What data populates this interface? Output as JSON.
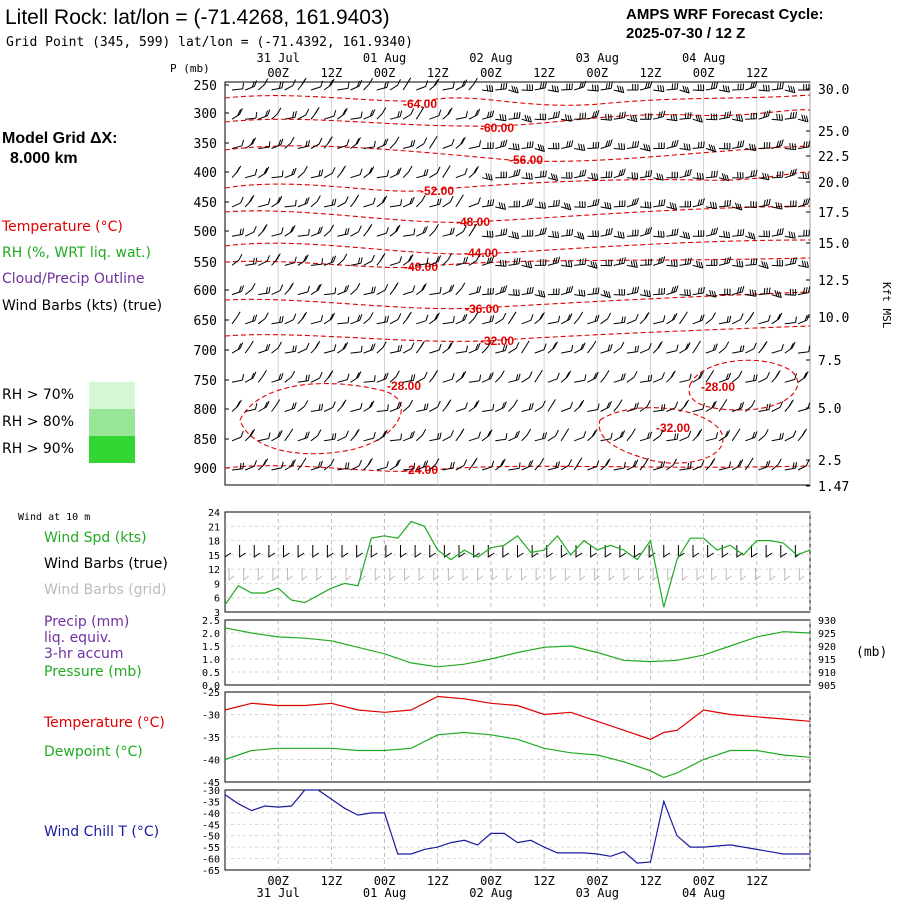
{
  "header": {
    "title": "Litell Rock:  lat/lon = (-71.4268, 161.9403)",
    "subtitle": "Grid Point (345, 599) lat/lon = (-71.4392, 161.9340)",
    "cycle_line1": "AMPS WRF Forecast Cycle:",
    "cycle_line2": "2025-07-30 / 12  Z"
  },
  "sidebar": {
    "grid_label": "Model Grid ΔX:",
    "grid_value": "8.000 km",
    "legend": [
      {
        "text": "Temperature (°C)",
        "color": "#e00000"
      },
      {
        "text": "RH (%, WRT liq. wat.)",
        "color": "#22aa22"
      },
      {
        "text": "Cloud/Precip Outline",
        "color": "#7030a0"
      },
      {
        "text": "Wind Barbs (kts) (true)",
        "color": "#000000"
      }
    ],
    "rh_bins": [
      {
        "text": "RH > 70%",
        "color": "#d6f7d6"
      },
      {
        "text": "RH > 80%",
        "color": "#99e699"
      },
      {
        "text": "RH > 90%",
        "color": "#33d633"
      }
    ]
  },
  "time_axis": {
    "dates_top": [
      "31 Jul",
      "01 Aug",
      "02 Aug",
      "03 Aug",
      "04 Aug"
    ],
    "hours": [
      "00Z",
      "12Z",
      "00Z",
      "12Z",
      "00Z",
      "12Z",
      "00Z",
      "12Z",
      "00Z",
      "12Z"
    ]
  },
  "main_panel": {
    "ylabel_left": "P (mb)",
    "ylabel_right": "Kft MSL",
    "pressure_ticks": [
      "250",
      "300",
      "350",
      "400",
      "450",
      "500",
      "550",
      "600",
      "650",
      "700",
      "750",
      "800",
      "850",
      "900"
    ],
    "height_ticks": [
      "30.0",
      "25.0",
      "22.5",
      "20.0",
      "17.5",
      "15.0",
      "12.5",
      "10.0",
      "7.5",
      "5.0",
      "2.5",
      "1.47"
    ],
    "isotherm_labels": [
      "-64.00",
      "-60.00",
      "-56.00",
      "-52.00",
      "-48.00",
      "-44.00",
      "-40.00",
      "-36.00",
      "-32.00",
      "-28.00",
      "-28.00",
      "-32.00",
      "-24.00"
    ]
  },
  "wind_panel": {
    "title": "Wind at 10 m",
    "labels": [
      {
        "text": "Wind Spd (kts)",
        "color": "#22aa22"
      },
      {
        "text": "Wind Barbs (true)",
        "color": "#000000"
      },
      {
        "text": "Wind Barbs (grid)",
        "color": "#bbbbbb"
      }
    ],
    "yticks": [
      "24",
      "21",
      "18",
      "15",
      "12",
      "9",
      "6",
      "3"
    ]
  },
  "precip_panel": {
    "labels": [
      {
        "text": "Precip (mm)",
        "color": "#7030a0"
      },
      {
        "text": "liq. equiv.",
        "color": "#7030a0"
      },
      {
        "text": "3-hr accum",
        "color": "#7030a0"
      },
      {
        "text": "Pressure (mb)",
        "color": "#22aa22"
      }
    ],
    "left_ticks": [
      "2.5",
      "2.0",
      "1.5",
      "1.0",
      "0.5",
      "0.0"
    ],
    "right_ticks": [
      "930",
      "925",
      "920",
      "915",
      "910",
      "905"
    ],
    "right_unit": "(mb)"
  },
  "temp_panel": {
    "labels": [
      {
        "text": "Temperature (°C)",
        "color": "#e00000"
      },
      {
        "text": "Dewpoint (°C)",
        "color": "#22aa22"
      }
    ],
    "yticks": [
      "-25",
      "-30",
      "-35",
      "-40",
      "-45"
    ]
  },
  "chill_panel": {
    "labels": [
      {
        "text": "Wind Chill T (°C)",
        "color": "#1a1aa0"
      }
    ],
    "yticks": [
      "-30",
      "-35",
      "-40",
      "-45",
      "-50",
      "-55",
      "-60",
      "-65"
    ]
  },
  "chart_data": [
    {
      "type": "line",
      "panel": "wind",
      "x_range": [
        -12,
        120
      ],
      "ylim": [
        3,
        24
      ],
      "series": [
        {
          "name": "Wind Spd (kts)",
          "color": "#22aa22",
          "x": [
            -12,
            -9,
            -6,
            -3,
            0,
            3,
            6,
            9,
            12,
            15,
            18,
            21,
            24,
            27,
            30,
            33,
            36,
            39,
            42,
            45,
            48,
            51,
            54,
            57,
            60,
            63,
            66,
            69,
            72,
            75,
            78,
            81,
            84,
            87,
            90,
            93,
            96,
            99,
            102,
            105,
            108,
            111,
            114,
            117,
            120
          ],
          "values": [
            4.5,
            8.5,
            7,
            7,
            8,
            5.5,
            5,
            6.5,
            8,
            9,
            8.5,
            18.5,
            19,
            18.5,
            22,
            21,
            16,
            14,
            16,
            14.5,
            16.5,
            17,
            19,
            15.5,
            16,
            19,
            15,
            18,
            16,
            17,
            16,
            14,
            18,
            4,
            14,
            18.5,
            18.5,
            16,
            17,
            15,
            18,
            18,
            17.5,
            15,
            16
          ]
        }
      ]
    },
    {
      "type": "line",
      "panel": "precip_pressure",
      "x_range": [
        -12,
        120
      ],
      "ylim": [
        905,
        930
      ],
      "series": [
        {
          "name": "Pressure (mb)",
          "color": "#22aa22",
          "x": [
            -12,
            -6,
            0,
            6,
            12,
            18,
            24,
            30,
            36,
            42,
            48,
            54,
            60,
            66,
            72,
            78,
            84,
            90,
            96,
            102,
            108,
            114,
            120
          ],
          "values": [
            927,
            925,
            923.5,
            923,
            922,
            919.5,
            917,
            913.5,
            912,
            913,
            915,
            917.5,
            919.5,
            920,
            917.5,
            914.5,
            914,
            914.5,
            916.5,
            920,
            923.5,
            925.5,
            925
          ]
        }
      ]
    },
    {
      "type": "line",
      "panel": "temperature",
      "x_range": [
        -12,
        120
      ],
      "ylim": [
        -45,
        -25
      ],
      "series": [
        {
          "name": "Temperature (°C)",
          "color": "#e00000",
          "x": [
            -12,
            -6,
            0,
            6,
            12,
            18,
            24,
            30,
            36,
            42,
            48,
            54,
            60,
            66,
            72,
            78,
            84,
            87,
            90,
            96,
            102,
            108,
            114,
            120
          ],
          "values": [
            -29,
            -27.5,
            -28,
            -28,
            -27.5,
            -29,
            -29.5,
            -29,
            -26,
            -26.5,
            -27.5,
            -28,
            -30,
            -29.5,
            -31.5,
            -33.5,
            -35.5,
            -34,
            -33.5,
            -29,
            -30,
            -30.5,
            -31,
            -31.5
          ]
        },
        {
          "name": "Dewpoint (°C)",
          "color": "#22aa22",
          "x": [
            -12,
            -6,
            0,
            6,
            12,
            18,
            24,
            30,
            36,
            42,
            48,
            54,
            60,
            66,
            72,
            78,
            84,
            87,
            90,
            96,
            102,
            108,
            114,
            120
          ],
          "values": [
            -40,
            -38,
            -37.5,
            -37.5,
            -37.5,
            -38,
            -38,
            -37.5,
            -34.5,
            -34,
            -34.5,
            -35.5,
            -37.5,
            -38.5,
            -39,
            -40.5,
            -42.5,
            -44,
            -43,
            -40,
            -38,
            -38,
            -39,
            -39.5
          ]
        }
      ]
    },
    {
      "type": "line",
      "panel": "wind_chill",
      "x_range": [
        -12,
        120
      ],
      "ylim": [
        -65,
        -30
      ],
      "series": [
        {
          "name": "Wind Chill T (°C)",
          "color": "#1a1aa0",
          "x": [
            -12,
            -9,
            -6,
            -3,
            0,
            3,
            6,
            9,
            12,
            15,
            18,
            21,
            24,
            27,
            30,
            33,
            36,
            39,
            42,
            45,
            48,
            51,
            54,
            57,
            60,
            63,
            66,
            69,
            72,
            75,
            78,
            81,
            84,
            87,
            90,
            93,
            96,
            99,
            102,
            105,
            108,
            111,
            114,
            117,
            120
          ],
          "values": [
            -32,
            -36,
            -39,
            -37,
            -37.5,
            -37,
            -30,
            -30,
            -34,
            -38,
            -41,
            -40,
            -40,
            -58,
            -58,
            -56,
            -55,
            -53,
            -52,
            -54,
            -49,
            -49,
            -53,
            -52,
            -55,
            -57.5,
            -57.5,
            -57.5,
            -58,
            -59,
            -57,
            -62,
            -61.5,
            -35,
            -50,
            -55,
            -55,
            -54.5,
            -54,
            -55,
            -56,
            -57,
            -58,
            -58,
            -58
          ]
        }
      ]
    }
  ]
}
